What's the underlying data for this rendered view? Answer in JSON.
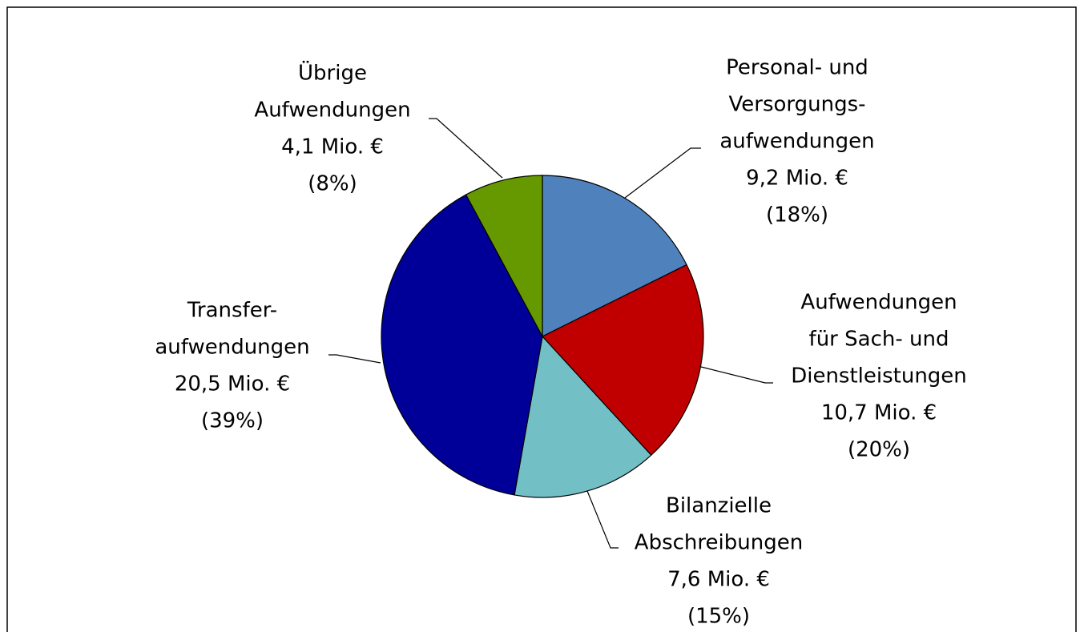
{
  "chart_data": {
    "type": "pie",
    "categories": [
      [
        "Personal- und",
        "Versorgungs-",
        "aufwendungen"
      ],
      [
        "Aufwendungen",
        "für Sach- und",
        "Dienstleistungen"
      ],
      [
        "Bilanzielle",
        "Abschreibungen"
      ],
      [
        "Transfer-",
        "aufwendungen"
      ],
      [
        "Übrige",
        "Aufwendungen"
      ]
    ],
    "values": [
      9.2,
      10.7,
      7.6,
      20.5,
      4.1
    ],
    "value_labels": [
      "9,2 Mio. €",
      "10,7 Mio. €",
      "7,6 Mio. €",
      "20,5 Mio. €",
      "4,1 Mio. €"
    ],
    "percents": [
      18,
      20,
      15,
      39,
      8
    ],
    "percent_labels": [
      "(18%)",
      "(20%)",
      "(15%)",
      "(39%)",
      "(8%)"
    ],
    "colors": [
      "#4f81bd",
      "#c00000",
      "#72bfc5",
      "#000099",
      "#669900"
    ]
  }
}
